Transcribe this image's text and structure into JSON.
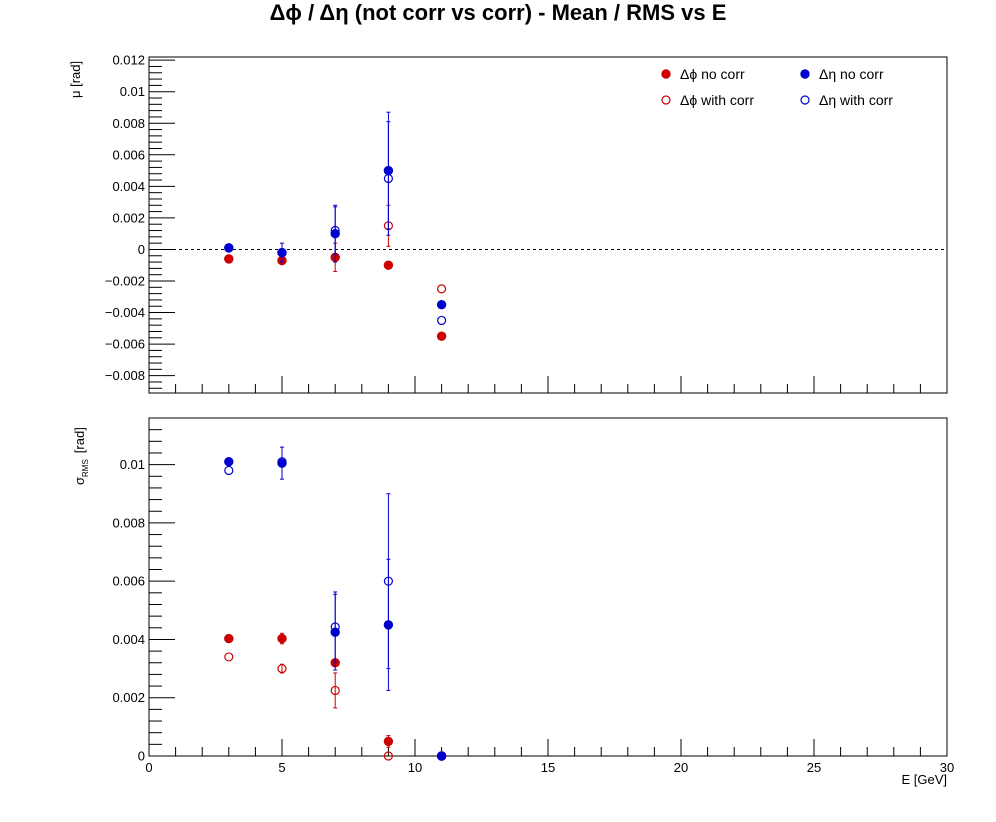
{
  "title": "Δϕ / Δη  (not corr vs corr)  -  Mean / RMS vs E",
  "colors": {
    "phi": "#cc0000",
    "eta": "#0000cc",
    "axis": "#000000",
    "zero_line": "#000000"
  },
  "legend": {
    "placement": "top-right",
    "entries": [
      "Δϕ no corr",
      "Δη no corr",
      "Δϕ with corr",
      "Δη with corr"
    ]
  },
  "chart_data": [
    {
      "type": "scatter",
      "ylabel": "μ  [rad]",
      "xlim": [
        0,
        30
      ],
      "ylim": [
        -0.0091,
        0.0122
      ],
      "yticks": [
        -0.008,
        -0.006,
        -0.004,
        -0.002,
        0,
        0.002,
        0.004,
        0.006,
        0.008,
        0.01,
        0.012
      ],
      "ytick_labels": [
        "−0.008",
        "−0.006",
        "−0.004",
        "−0.002",
        "0",
        "0.002",
        "0.004",
        "0.006",
        "0.008",
        "0.01",
        "0.012"
      ],
      "zero_line": true,
      "series": [
        {
          "name": "Δϕ no corr",
          "marker": "filled",
          "color": "phi",
          "points": [
            {
              "x": 3,
              "y": -0.0006,
              "err": 0.0001
            },
            {
              "x": 5,
              "y": -0.0007,
              "err": 0.0001
            },
            {
              "x": 7,
              "y": -0.0005,
              "err": 0
            },
            {
              "x": 9,
              "y": -0.001,
              "err": 0.0002
            },
            {
              "x": 11,
              "y": -0.0055,
              "err": 0
            }
          ]
        },
        {
          "name": "Δϕ with corr",
          "marker": "open",
          "color": "phi",
          "points": [
            {
              "x": 3,
              "y": -0.0006,
              "err": 0
            },
            {
              "x": 5,
              "y": -0.0007,
              "err": 0
            },
            {
              "x": 7,
              "y": -0.0005,
              "err": 0.0009
            },
            {
              "x": 9,
              "y": 0.0015,
              "err": 0.0013
            },
            {
              "x": 11,
              "y": -0.0025,
              "err": 0
            }
          ]
        },
        {
          "name": "Δη no corr",
          "marker": "filled",
          "color": "eta",
          "points": [
            {
              "x": 3,
              "y": 0.0001,
              "err": 0
            },
            {
              "x": 5,
              "y": -0.0002,
              "err": 0.0006
            },
            {
              "x": 7,
              "y": 0.001,
              "err": 0.0018
            },
            {
              "x": 9,
              "y": 0.005,
              "err": 0.0037
            },
            {
              "x": 11,
              "y": -0.0035,
              "err": 0
            }
          ]
        },
        {
          "name": "Δη with corr",
          "marker": "open",
          "color": "eta",
          "points": [
            {
              "x": 3,
              "y": 0.0001,
              "err": 0
            },
            {
              "x": 5,
              "y": -0.0002,
              "err": 0
            },
            {
              "x": 7,
              "y": 0.0012,
              "err": 0.0015
            },
            {
              "x": 9,
              "y": 0.0045,
              "err": 0.0036
            },
            {
              "x": 11,
              "y": -0.0045,
              "err": 0
            }
          ]
        }
      ]
    },
    {
      "type": "scatter",
      "xlabel": "E  [GeV]",
      "ylabel": "σ",
      "ylabel_sub": "RMS",
      "ylabel_unit": "[rad]",
      "xlim": [
        0,
        30
      ],
      "ylim": [
        0,
        0.0116
      ],
      "xticks": [
        0,
        5,
        10,
        15,
        20,
        25,
        30
      ],
      "xtick_labels": [
        "0",
        "5",
        "10",
        "15",
        "20",
        "25",
        "30"
      ],
      "yticks": [
        0,
        0.002,
        0.004,
        0.006,
        0.008,
        0.01
      ],
      "ytick_labels": [
        "0",
        "0.002",
        "0.004",
        "0.006",
        "0.008",
        "0.01"
      ],
      "series": [
        {
          "name": "Δϕ no corr",
          "marker": "filled",
          "color": "phi",
          "points": [
            {
              "x": 3,
              "y": 0.00403,
              "err": 0.0001
            },
            {
              "x": 5,
              "y": 0.00403,
              "err": 0.00018
            },
            {
              "x": 7,
              "y": 0.0032,
              "err": 0.0001
            },
            {
              "x": 9,
              "y": 0.0005,
              "err": 0.0002
            },
            {
              "x": 11,
              "y": 0,
              "err": 0
            }
          ]
        },
        {
          "name": "Δϕ with corr",
          "marker": "open",
          "color": "phi",
          "points": [
            {
              "x": 3,
              "y": 0.0034,
              "err": 0
            },
            {
              "x": 5,
              "y": 0.003,
              "err": 0.00015
            },
            {
              "x": 7,
              "y": 0.00225,
              "err": 0.0006
            },
            {
              "x": 9,
              "y": 0,
              "err": 0
            },
            {
              "x": 11,
              "y": 0,
              "err": 0
            }
          ]
        },
        {
          "name": "Δη no corr",
          "marker": "filled",
          "color": "eta",
          "points": [
            {
              "x": 3,
              "y": 0.0101,
              "err": 0
            },
            {
              "x": 5,
              "y": 0.01005,
              "err": 0.00055
            },
            {
              "x": 7,
              "y": 0.00425,
              "err": 0.0013
            },
            {
              "x": 9,
              "y": 0.0045,
              "err": 0.00225
            },
            {
              "x": 11,
              "y": 0,
              "err": 0
            }
          ]
        },
        {
          "name": "Δη with corr",
          "marker": "open",
          "color": "eta",
          "points": [
            {
              "x": 3,
              "y": 0.0098,
              "err": 0
            },
            {
              "x": 5,
              "y": 0.0101,
              "err": 0
            },
            {
              "x": 7,
              "y": 0.00443,
              "err": 0.0012
            },
            {
              "x": 9,
              "y": 0.006,
              "err": 0.003
            },
            {
              "x": 11,
              "y": 0,
              "err": 0
            }
          ]
        }
      ]
    }
  ]
}
